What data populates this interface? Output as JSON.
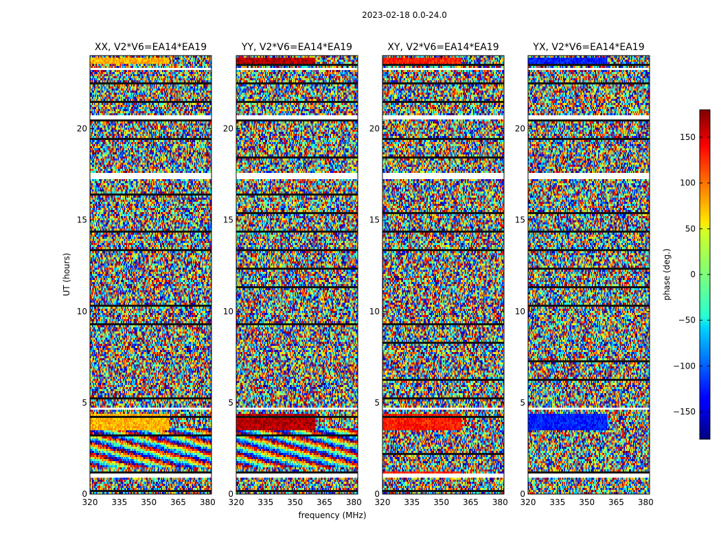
{
  "figure": {
    "suptitle": "2023-02-18 0.0-24.0"
  },
  "chart_data": {
    "type": "heatmap",
    "title": "2023-02-18 0.0-24.0",
    "xlabel": "frequency (MHz)",
    "ylabel": "UT (hours)",
    "xlim": [
      320,
      382
    ],
    "ylim": [
      0,
      24
    ],
    "x_ticks": [
      320,
      335,
      350,
      365,
      380
    ],
    "y_ticks": [
      0,
      5,
      10,
      15,
      20
    ],
    "panels": [
      {
        "title": "XX, V2*V6=EA14*EA19",
        "polarization": "XX"
      },
      {
        "title": "YY, V2*V6=EA14*EA19",
        "polarization": "YY"
      },
      {
        "title": "XY, V2*V6=EA14*EA19",
        "polarization": "XY"
      },
      {
        "title": "YX, V2*V6=EA14*EA19",
        "polarization": "YX"
      }
    ],
    "colorbar": {
      "label": "phase (deg.)",
      "range": [
        -180,
        180
      ],
      "ticks": [
        -150,
        -100,
        -50,
        0,
        50,
        100,
        150
      ],
      "colormap": "jet"
    },
    "flagged_time_gaps_hours": [
      [
        0.95,
        1.1
      ],
      [
        4.6,
        4.75
      ],
      [
        17.25,
        17.55
      ],
      [
        20.55,
        20.75
      ],
      [
        23.25,
        23.35
      ]
    ],
    "notes": "Phase values appear largely noise-like; coherent phase bands around 0.9-1.2 h and 3.5-4.4 h, and at the top near 23.6-23.9 h."
  }
}
